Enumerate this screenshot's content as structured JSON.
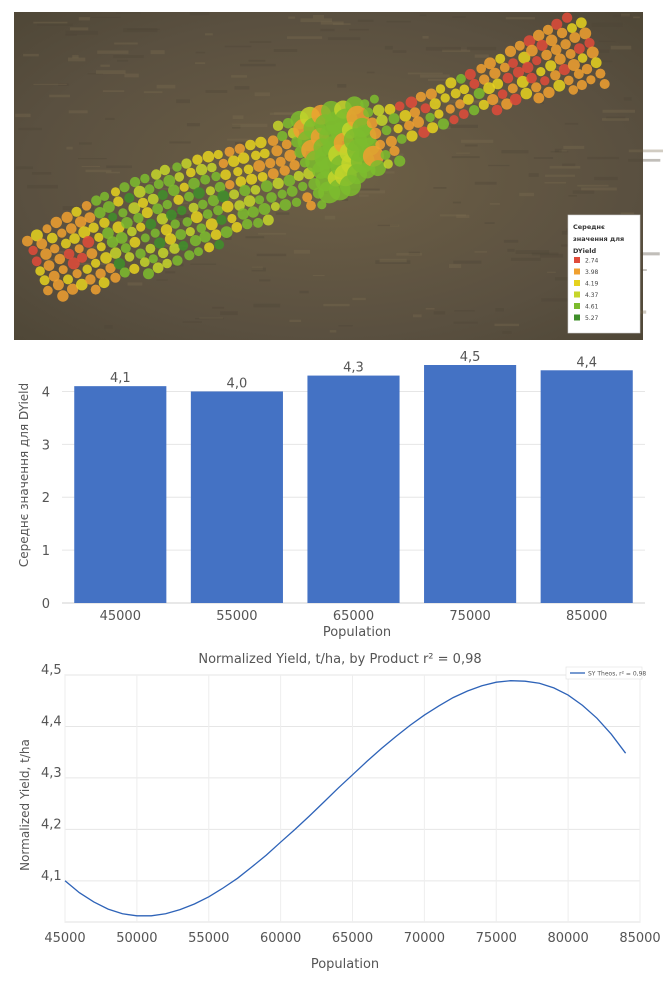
{
  "map": {
    "legend_title_lines": [
      "Середнє",
      "значення для",
      "DYield"
    ],
    "legend_items": [
      {
        "label": "2.74",
        "color": "#e04b3a"
      },
      {
        "label": "3.98",
        "color": "#f0a030"
      },
      {
        "label": "4.19",
        "color": "#e6d21e"
      },
      {
        "label": "4.37",
        "color": "#c6d62a"
      },
      {
        "label": "4.61",
        "color": "#7cbc2e"
      },
      {
        "label": "5.27",
        "color": "#3f8f2a"
      }
    ]
  },
  "chart_data": [
    {
      "type": "bar",
      "categories": [
        "45000",
        "55000",
        "65000",
        "75000",
        "85000"
      ],
      "values": [
        4.1,
        4.0,
        4.3,
        4.5,
        4.4
      ],
      "data_labels": [
        "4,1",
        "4,0",
        "4,3",
        "4,5",
        "4,4"
      ],
      "title": "",
      "xlabel": "Population",
      "ylabel": "Середнє значення для DYield",
      "ylim": [
        0,
        4.5
      ],
      "yticks": [
        0,
        1,
        2,
        3,
        4
      ],
      "ytick_labels": [
        "0",
        "1",
        "2",
        "3",
        "4"
      ],
      "color": "#4472c4"
    },
    {
      "type": "line",
      "title": "Normalized Yield, t/ha, by Product r² = 0,98",
      "xlabel": "Population",
      "ylabel": "Normalized Yield, t/ha",
      "xlim": [
        45000,
        85000
      ],
      "ylim": [
        4.02,
        4.5
      ],
      "xticks": [
        45000,
        50000,
        55000,
        60000,
        65000,
        70000,
        75000,
        80000,
        85000
      ],
      "xtick_labels": [
        "45000",
        "50000",
        "55000",
        "60000",
        "65000",
        "70000",
        "75000",
        "80000",
        "85000"
      ],
      "yticks": [
        4.1,
        4.2,
        4.3,
        4.4,
        4.5
      ],
      "ytick_labels": [
        "4,1",
        "4,2",
        "4,3",
        "4,4",
        "4,5"
      ],
      "legend": "SY Theos, r² = 0,98",
      "legend_position": "top-right",
      "color": "#2e63b8",
      "series": [
        {
          "name": "SY Theos, r² = 0,98",
          "x": [
            45000,
            46000,
            47000,
            48000,
            49000,
            50000,
            51000,
            52000,
            53000,
            54000,
            55000,
            56000,
            57000,
            58000,
            59000,
            60000,
            61000,
            62000,
            63000,
            64000,
            65000,
            66000,
            67000,
            68000,
            69000,
            70000,
            71000,
            72000,
            73000,
            74000,
            75000,
            76000,
            77000,
            78000,
            79000,
            80000,
            81000,
            82000,
            83000,
            84000
          ],
          "values": [
            4.1,
            4.077,
            4.059,
            4.045,
            4.036,
            4.032,
            4.032,
            4.036,
            4.044,
            4.055,
            4.069,
            4.086,
            4.105,
            4.127,
            4.15,
            4.175,
            4.2,
            4.226,
            4.253,
            4.28,
            4.306,
            4.332,
            4.357,
            4.38,
            4.402,
            4.422,
            4.44,
            4.456,
            4.469,
            4.479,
            4.486,
            4.489,
            4.488,
            4.484,
            4.475,
            4.461,
            4.441,
            4.416,
            4.385,
            4.348
          ]
        }
      ]
    }
  ]
}
